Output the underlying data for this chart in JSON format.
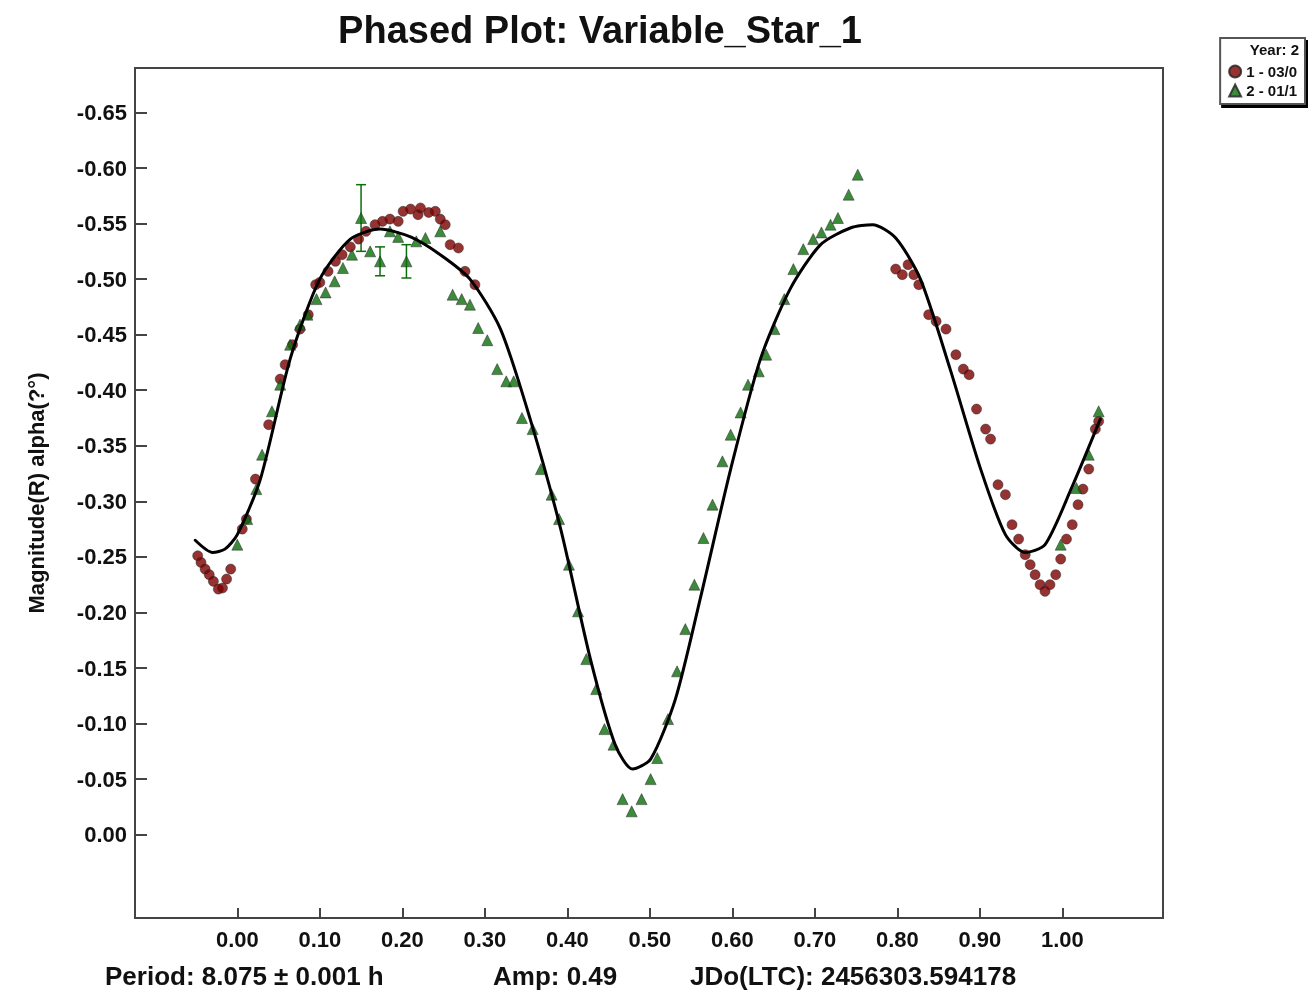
{
  "chart_data": {
    "type": "scatter",
    "title": "Phased Plot: Variable_Star_1",
    "ylabel": "Magnitude(R) alpha(?°)",
    "legend_title": "Year: 2",
    "annotations": [
      "Period: 8.075 ± 0.001 h",
      "Amp: 0.49",
      "JDo(LTC): 2456303.594178"
    ],
    "xlim": [
      -0.124,
      1.122
    ],
    "ylim": [
      0.075,
      -0.69
    ],
    "xticks": [
      {
        "value": 0,
        "label": "0.00"
      },
      {
        "value": 0.1,
        "label": "0.10"
      },
      {
        "value": 0.2,
        "label": "0.20"
      },
      {
        "value": 0.3,
        "label": "0.30"
      },
      {
        "value": 0.4,
        "label": "0.40"
      },
      {
        "value": 0.5,
        "label": "0.50"
      },
      {
        "value": 0.6,
        "label": "0.60"
      },
      {
        "value": 0.7,
        "label": "0.70"
      },
      {
        "value": 0.8,
        "label": "0.80"
      },
      {
        "value": 0.9,
        "label": "0.90"
      },
      {
        "value": 1,
        "label": "1.00"
      }
    ],
    "yticks": [
      {
        "value": -0.65,
        "label": "-0.65"
      },
      {
        "value": -0.6,
        "label": "-0.60"
      },
      {
        "value": -0.55,
        "label": "-0.55"
      },
      {
        "value": -0.5,
        "label": "-0.50"
      },
      {
        "value": -0.45,
        "label": "-0.45"
      },
      {
        "value": -0.4,
        "label": "-0.40"
      },
      {
        "value": -0.35,
        "label": "-0.35"
      },
      {
        "value": -0.3,
        "label": "-0.30"
      },
      {
        "value": -0.25,
        "label": "-0.25"
      },
      {
        "value": -0.2,
        "label": "-0.20"
      },
      {
        "value": -0.15,
        "label": "-0.15"
      },
      {
        "value": -0.1,
        "label": "-0.10"
      },
      {
        "value": -0.05,
        "label": "-0.05"
      },
      {
        "value": 0,
        "label": "0.00"
      }
    ],
    "grid": false,
    "legend": "top right",
    "series": [
      {
        "name": "1 - 03/0",
        "marker": "circle",
        "color": "#7a0000",
        "x": [
          -0.048,
          -0.044,
          -0.039,
          -0.034,
          -0.029,
          -0.023,
          -0.018,
          -0.013,
          -0.008,
          0.006,
          0.011,
          0.022,
          0.038,
          0.052,
          0.058,
          0.067,
          0.076,
          0.086,
          0.095,
          0.1,
          0.11,
          0.119,
          0.127,
          0.137,
          0.147,
          0.156,
          0.167,
          0.176,
          0.185,
          0.195,
          0.201,
          0.21,
          0.219,
          0.222,
          0.232,
          0.24,
          0.246,
          0.252,
          0.258,
          0.268,
          0.276,
          0.288,
          0.798,
          0.806,
          0.813,
          0.82,
          0.826,
          0.838,
          0.847,
          0.859,
          0.871,
          0.88,
          0.887,
          0.896,
          0.907,
          0.913,
          0.922,
          0.931,
          0.939,
          0.947,
          0.955,
          0.961,
          0.967,
          0.973,
          0.979,
          0.985,
          0.992,
          0.998,
          1.005,
          1.012,
          1.019,
          1.025,
          1.032,
          1.04,
          1.044
        ],
        "values": [
          -0.251,
          -0.245,
          -0.239,
          -0.234,
          -0.228,
          -0.221,
          -0.222,
          -0.23,
          -0.239,
          -0.275,
          -0.284,
          -0.32,
          -0.369,
          -0.41,
          -0.423,
          -0.441,
          -0.455,
          -0.468,
          -0.495,
          -0.497,
          -0.507,
          -0.516,
          -0.522,
          -0.529,
          -0.536,
          -0.543,
          -0.549,
          -0.552,
          -0.554,
          -0.552,
          -0.561,
          -0.563,
          -0.558,
          -0.564,
          -0.56,
          -0.561,
          -0.554,
          -0.549,
          -0.531,
          -0.528,
          -0.507,
          -0.495,
          -0.509,
          -0.504,
          -0.513,
          -0.504,
          -0.495,
          -0.468,
          -0.462,
          -0.455,
          -0.432,
          -0.419,
          -0.414,
          -0.383,
          -0.365,
          -0.356,
          -0.315,
          -0.306,
          -0.279,
          -0.266,
          -0.252,
          -0.243,
          -0.234,
          -0.225,
          -0.219,
          -0.225,
          -0.234,
          -0.248,
          -0.266,
          -0.279,
          -0.297,
          -0.311,
          -0.329,
          -0.365,
          -0.372
        ]
      },
      {
        "name": "2 - 01/1",
        "marker": "triangle",
        "color": "#0a6e0a",
        "x": [
          0.0,
          0.012,
          0.023,
          0.03,
          0.042,
          0.052,
          0.064,
          0.076,
          0.085,
          0.096,
          0.107,
          0.118,
          0.128,
          0.139,
          0.15,
          0.161,
          0.173,
          0.185,
          0.195,
          0.205,
          0.217,
          0.228,
          0.246,
          0.261,
          0.272,
          0.282,
          0.292,
          0.303,
          0.315,
          0.326,
          0.335,
          0.345,
          0.358,
          0.368,
          0.381,
          0.39,
          0.402,
          0.413,
          0.423,
          0.435,
          0.445,
          0.456,
          0.467,
          0.478,
          0.49,
          0.501,
          0.509,
          0.522,
          0.533,
          0.543,
          0.554,
          0.565,
          0.576,
          0.588,
          0.598,
          0.61,
          0.619,
          0.632,
          0.641,
          0.651,
          0.663,
          0.674,
          0.686,
          0.698,
          0.708,
          0.719,
          0.728,
          0.741,
          0.752,
          0.998,
          1.017,
          1.032,
          1.044
        ],
        "values": [
          -0.261,
          -0.284,
          -0.311,
          -0.342,
          -0.381,
          -0.405,
          -0.441,
          -0.459,
          -0.468,
          -0.482,
          -0.488,
          -0.498,
          -0.51,
          -0.522,
          -0.555,
          -0.525,
          -0.516,
          -0.543,
          -0.538,
          -0.516,
          -0.534,
          -0.537,
          -0.543,
          -0.486,
          -0.482,
          -0.477,
          -0.456,
          -0.445,
          -0.419,
          -0.408,
          -0.408,
          -0.375,
          -0.365,
          -0.329,
          -0.306,
          -0.284,
          -0.243,
          -0.201,
          -0.158,
          -0.131,
          -0.095,
          -0.081,
          -0.032,
          -0.021,
          -0.032,
          -0.05,
          -0.069,
          -0.104,
          -0.147,
          -0.185,
          -0.225,
          -0.267,
          -0.297,
          -0.336,
          -0.36,
          -0.38,
          -0.405,
          -0.417,
          -0.432,
          -0.455,
          -0.482,
          -0.509,
          -0.527,
          -0.536,
          -0.542,
          -0.549,
          -0.555,
          -0.576,
          -0.594,
          -0.261,
          -0.312,
          -0.342,
          -0.381
        ],
        "errors": [
          null,
          null,
          null,
          null,
          null,
          null,
          null,
          null,
          null,
          null,
          null,
          null,
          null,
          null,
          0.03,
          null,
          0.013,
          null,
          null,
          0.015,
          null,
          null,
          null,
          null,
          null,
          null,
          null,
          null,
          null,
          null,
          null,
          null,
          null,
          null,
          null,
          null,
          null,
          null,
          null,
          null,
          null,
          null,
          null,
          null,
          null,
          null,
          null,
          null,
          null,
          null,
          null,
          null,
          null,
          null,
          null,
          null,
          null,
          null,
          null,
          null,
          null,
          null,
          null,
          null,
          null,
          null,
          null,
          null,
          null,
          null,
          null,
          null,
          null
        ]
      },
      {
        "type": "line",
        "marker": "none",
        "line_style": "solid",
        "color": "#000000",
        "x": [
          -0.051,
          -0.03,
          -0.015,
          0,
          0.028,
          0.064,
          0.1,
          0.137,
          0.173,
          0.21,
          0.246,
          0.282,
          0.319,
          0.355,
          0.392,
          0.428,
          0.458,
          0.479,
          0.501,
          0.531,
          0.561,
          0.598,
          0.634,
          0.67,
          0.707,
          0.743,
          0.77,
          0.798,
          0.828,
          0.864,
          0.901,
          0.931,
          0.955,
          0.979,
          1.01,
          1.046
        ],
        "values": [
          -0.265,
          -0.254,
          -0.257,
          -0.27,
          -0.32,
          -0.428,
          -0.5,
          -0.536,
          -0.545,
          -0.538,
          -0.522,
          -0.5,
          -0.455,
          -0.374,
          -0.275,
          -0.158,
          -0.081,
          -0.059,
          -0.068,
          -0.122,
          -0.212,
          -0.329,
          -0.428,
          -0.491,
          -0.531,
          -0.546,
          -0.549,
          -0.537,
          -0.5,
          -0.419,
          -0.329,
          -0.27,
          -0.254,
          -0.261,
          -0.31,
          -0.374
        ]
      }
    ]
  }
}
